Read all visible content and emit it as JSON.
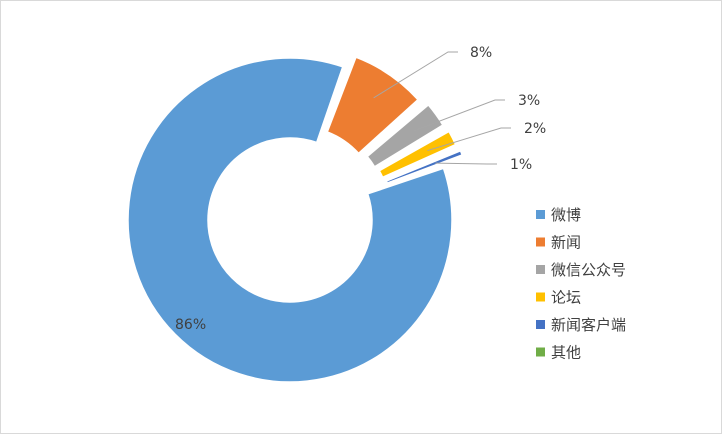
{
  "chart_data": {
    "type": "pie",
    "style": "doughnut, exploded slices",
    "title": "",
    "legend_position": "right",
    "categories": [
      "微博",
      "新闻",
      "微信公众号",
      "论坛",
      "新闻客户端",
      "其他"
    ],
    "values": [
      86,
      8,
      3,
      2,
      1,
      0
    ],
    "value_labels": [
      "86%",
      "8%",
      "3%",
      "2%",
      "1%",
      ""
    ],
    "colors": [
      "#5B9BD5",
      "#ED7D31",
      "#A5A5A5",
      "#FFC000",
      "#4472C4",
      "#70AD47"
    ]
  }
}
